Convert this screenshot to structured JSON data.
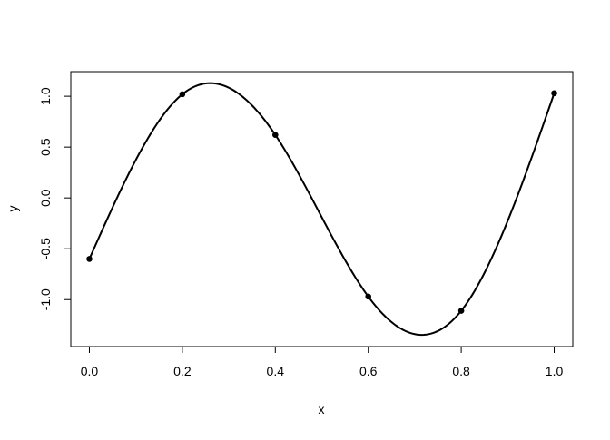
{
  "chart_data": {
    "type": "line",
    "title": "",
    "xlabel": "x",
    "ylabel": "y",
    "xlim": [
      -0.04,
      1.04
    ],
    "ylim": [
      -1.462,
      1.242
    ],
    "grid": false,
    "x_ticks": [
      "0.0",
      "0.2",
      "0.4",
      "0.6",
      "0.8",
      "1.0"
    ],
    "y_ticks": [
      "-1.0",
      "-0.5",
      "0.0",
      "0.5",
      "1.0"
    ],
    "points": {
      "x": [
        0.0,
        0.2,
        0.4,
        0.6,
        0.8,
        1.0
      ],
      "y": [
        -0.6,
        1.02,
        0.62,
        -0.97,
        -1.11,
        1.03
      ]
    },
    "curve": "smooth spline through points",
    "color": "#000000"
  }
}
